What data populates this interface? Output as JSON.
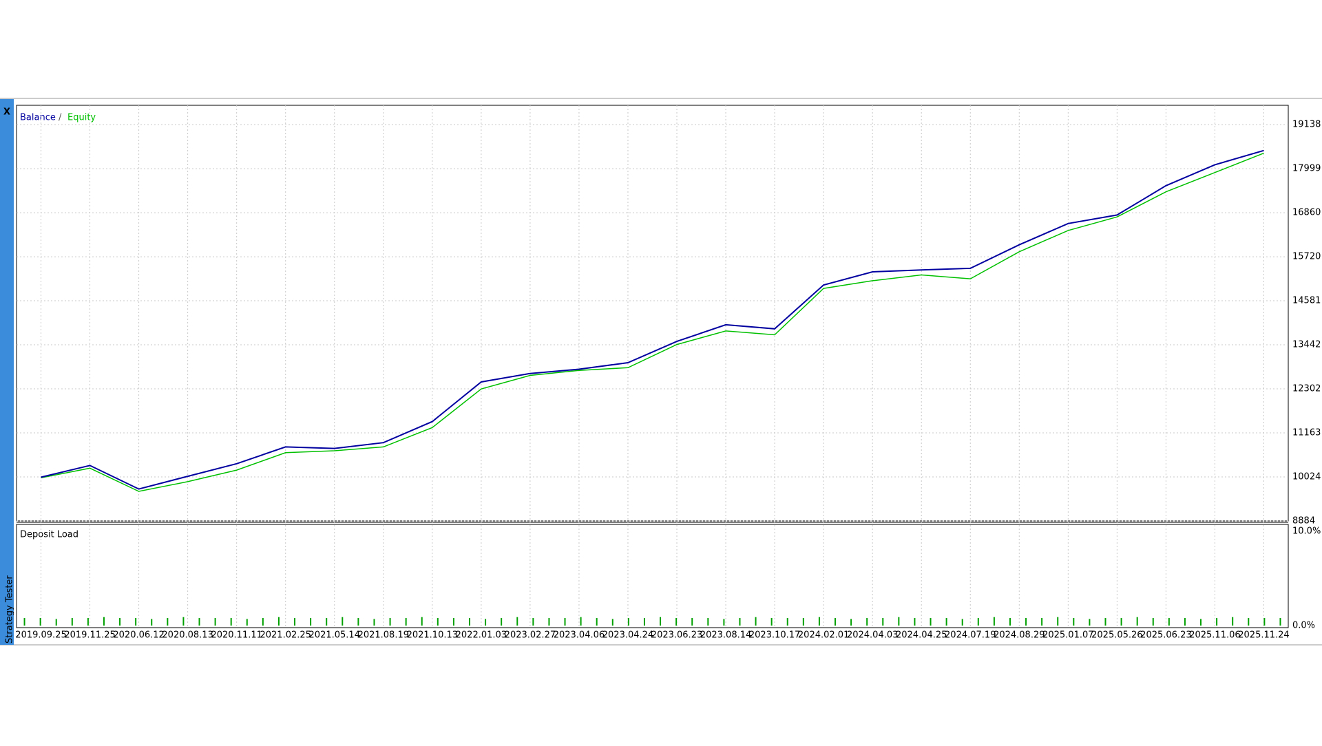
{
  "ui": {
    "close_button": "X",
    "side_tab": "Strategy Tester"
  },
  "chart_data": [
    {
      "type": "line",
      "legend_separator": "/",
      "categories": [
        "2019.09.25",
        "2019.11.25",
        "2020.06.12",
        "2020.08.13",
        "2020.11.11",
        "2021.02.25",
        "2021.05.14",
        "2021.08.19",
        "2021.10.13",
        "2022.01.03",
        "2023.02.27",
        "2023.04.06",
        "2023.04.24",
        "2023.06.23",
        "2023.08.14",
        "2023.10.17",
        "2024.02.01",
        "2024.04.03",
        "2024.04.25",
        "2024.07.19",
        "2024.08.29",
        "2025.01.07",
        "2025.05.26",
        "2025.06.23",
        "2025.11.06",
        "2025.11.24"
      ],
      "series": [
        {
          "name": "Balance",
          "color": "#0000a0",
          "values": [
            10017,
            10320,
            9710,
            10040,
            10365,
            10800,
            10760,
            10910,
            11455,
            12480,
            12700,
            12810,
            12980,
            13530,
            13960,
            13855,
            14990,
            15330,
            15380,
            15420,
            16030,
            16580,
            16800,
            17560,
            18100,
            18470
          ]
        },
        {
          "name": "Equity",
          "color": "#00c000",
          "values": [
            10000,
            10250,
            9650,
            9900,
            10200,
            10650,
            10700,
            10800,
            11300,
            12300,
            12650,
            12780,
            12850,
            13450,
            13800,
            13700,
            14900,
            15100,
            15250,
            15150,
            15850,
            16400,
            16750,
            17400,
            17900,
            18400
          ]
        }
      ],
      "ylim": [
        8884,
        19639
      ],
      "yticks": [
        8884,
        10024,
        11163,
        12302,
        13442,
        14581,
        15720,
        16860,
        17999,
        19138
      ],
      "grid": true
    },
    {
      "type": "bar",
      "title": "Deposit Load",
      "color": "#00a000",
      "values": [
        0.8,
        0.8,
        0.7,
        0.8,
        0.8,
        0.9,
        0.8,
        0.8,
        0.7,
        0.8,
        0.9,
        0.8,
        0.8,
        0.8,
        0.7,
        0.8,
        0.9,
        0.8,
        0.8,
        0.8,
        0.9,
        0.8,
        0.7,
        0.8,
        0.8,
        0.9,
        0.8,
        0.8,
        0.8,
        0.7,
        0.8,
        0.9,
        0.8,
        0.8,
        0.8,
        0.9,
        0.8,
        0.7,
        0.8,
        0.8,
        0.9,
        0.8,
        0.8,
        0.8,
        0.7,
        0.8,
        0.9,
        0.8,
        0.8,
        0.8,
        0.9,
        0.8,
        0.7,
        0.8,
        0.8,
        0.9,
        0.8,
        0.8,
        0.8,
        0.7,
        0.8,
        0.9,
        0.8,
        0.8,
        0.8,
        0.9,
        0.8,
        0.7,
        0.8,
        0.8,
        0.9,
        0.8,
        0.8,
        0.8,
        0.7,
        0.8,
        0.9,
        0.8,
        0.8,
        0.8
      ],
      "ylim": [
        0,
        10
      ],
      "yticks": [
        {
          "value": 0,
          "label": "0.0%"
        },
        {
          "value": 10,
          "label": "10.0%"
        }
      ]
    }
  ]
}
